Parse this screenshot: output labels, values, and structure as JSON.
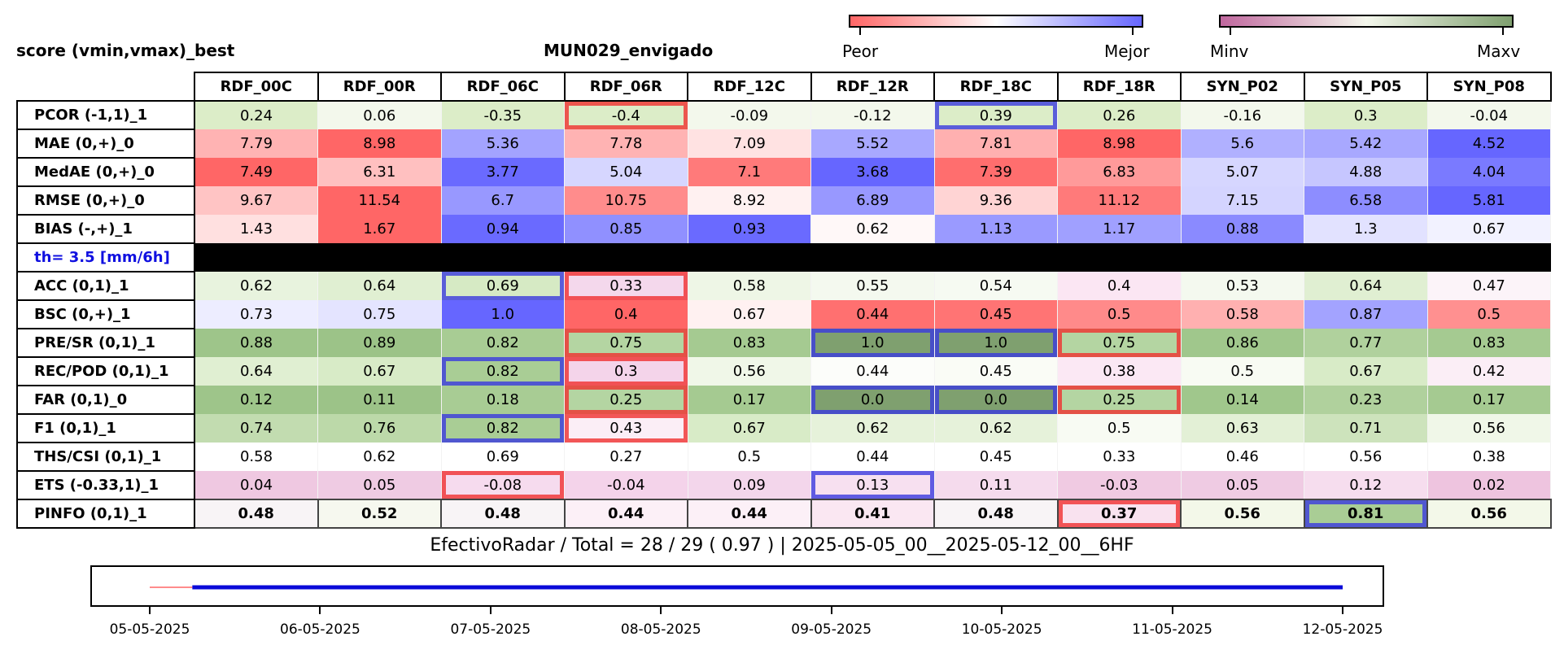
{
  "header": {
    "left_title": "score (vmin,vmax)_best",
    "center_title": "MUN029_envigado"
  },
  "colorbars": [
    {
      "left_label": "Peor",
      "right_label": "Mejor",
      "from": "#ff6666",
      "mid": "#ffffff",
      "to": "#6666ff"
    },
    {
      "left_label": "Minv",
      "right_label": "Maxv",
      "from": "#c0679e",
      "mid": "#f4f7ec",
      "to": "#7fa06f"
    }
  ],
  "chart_data": {
    "type": "table",
    "columns": [
      "RDF_00C",
      "RDF_00R",
      "RDF_06C",
      "RDF_06R",
      "RDF_12C",
      "RDF_12R",
      "RDF_18C",
      "RDF_18R",
      "SYN_P02",
      "SYN_P05",
      "SYN_P08"
    ],
    "rows": [
      {
        "label": "PCOR (-1,1)_1",
        "values": [
          "0.24",
          "0.06",
          "-0.35",
          "-0.4",
          "-0.09",
          "-0.12",
          "0.39",
          "0.26",
          "-0.16",
          "0.3",
          "-0.04"
        ],
        "colors": [
          "#dcedc8",
          "#f3f8ec",
          "#dcedc8",
          "#dcedc8",
          "#f3f8ec",
          "#f3f8ec",
          "#dcedc8",
          "#dcedc8",
          "#f3f8ec",
          "#dcedc8",
          "#f3f8ec"
        ],
        "outline": {
          "3": "worst",
          "6": "best"
        }
      },
      {
        "label": "MAE (0,+)_0",
        "values": [
          "7.79",
          "8.98",
          "5.36",
          "7.78",
          "7.09",
          "5.52",
          "7.81",
          "8.98",
          "5.6",
          "5.42",
          "4.52"
        ],
        "colors": [
          "#ffb3b3",
          "#ff6666",
          "#a3a3ff",
          "#ffb3b3",
          "#ffe2e2",
          "#a8a8ff",
          "#ffb0b0",
          "#ff6666",
          "#b0b0ff",
          "#a8a8ff",
          "#6666ff"
        ]
      },
      {
        "label": "MedAE (0,+)_0",
        "values": [
          "7.49",
          "6.31",
          "3.77",
          "5.04",
          "7.1",
          "3.68",
          "7.39",
          "6.83",
          "5.07",
          "4.88",
          "4.04"
        ],
        "colors": [
          "#ff6666",
          "#ffc0c0",
          "#6a6aff",
          "#d6d6ff",
          "#ff7a7a",
          "#6666ff",
          "#ff6e6e",
          "#ff9a9a",
          "#d6d6ff",
          "#c6c6ff",
          "#7a7aff"
        ]
      },
      {
        "label": "RMSE (0,+)_0",
        "values": [
          "9.67",
          "11.54",
          "6.7",
          "10.75",
          "8.92",
          "6.89",
          "9.36",
          "11.12",
          "7.15",
          "6.58",
          "5.81"
        ],
        "colors": [
          "#ffc4c4",
          "#ff6666",
          "#9898ff",
          "#ff8c8c",
          "#fff1f1",
          "#9898ff",
          "#ffd4d4",
          "#ff7a7a",
          "#d4d4ff",
          "#8d8dff",
          "#6666ff"
        ]
      },
      {
        "label": "BIAS (-,+)_1",
        "values": [
          "1.43",
          "1.67",
          "0.94",
          "0.85",
          "0.93",
          "0.62",
          "1.13",
          "1.17",
          "0.88",
          "1.3",
          "0.67"
        ],
        "colors": [
          "#ffe0e0",
          "#ff6666",
          "#6a6aff",
          "#9090ff",
          "#6a6aff",
          "#fff8f8",
          "#9a9aff",
          "#a0a0ff",
          "#8a8aff",
          "#e2e2ff",
          "#f2f2ff"
        ]
      },
      {
        "separator": true,
        "label": "th= 3.5 [mm/6h]"
      },
      {
        "label": "ACC (0,1)_1",
        "values": [
          "0.62",
          "0.64",
          "0.69",
          "0.33",
          "0.58",
          "0.55",
          "0.54",
          "0.4",
          "0.53",
          "0.64",
          "0.47"
        ],
        "colors": [
          "#e8f3de",
          "#e0efd2",
          "#d6eac4",
          "#f4d8ec",
          "#eef6e6",
          "#f4f9ef",
          "#f6faf2",
          "#fbe6f3",
          "#f4f9ef",
          "#e0efd2",
          "#fcf4f9"
        ],
        "outline": {
          "2": "best",
          "3": "worst"
        }
      },
      {
        "label": "BSC (0,+)_1",
        "values": [
          "0.73",
          "0.75",
          "1.0",
          "0.4",
          "0.67",
          "0.44",
          "0.45",
          "0.5",
          "0.58",
          "0.87",
          "0.5"
        ],
        "colors": [
          "#ededff",
          "#e4e4ff",
          "#6666ff",
          "#ff6666",
          "#fff1f1",
          "#ff7070",
          "#ff7474",
          "#ff8a8a",
          "#ffb0b0",
          "#a3a3ff",
          "#ff9090"
        ]
      },
      {
        "label": "PRE/SR (0,1)_1",
        "values": [
          "0.88",
          "0.89",
          "0.82",
          "0.75",
          "0.83",
          "1.0",
          "1.0",
          "0.75",
          "0.86",
          "0.77",
          "0.83"
        ],
        "colors": [
          "#9ec58a",
          "#9cc388",
          "#a8cc94",
          "#b4d5a2",
          "#a5ca91",
          "#7fa06f",
          "#7fa06f",
          "#b4d5a2",
          "#a0c78c",
          "#b0d19d",
          "#a5ca91"
        ],
        "outline": {
          "3": "worst",
          "5": "best",
          "6": "best",
          "7": "worst"
        }
      },
      {
        "label": "REC/POD (0,1)_1",
        "values": [
          "0.64",
          "0.67",
          "0.82",
          "0.3",
          "0.56",
          "0.44",
          "0.45",
          "0.38",
          "0.5",
          "0.67",
          "0.42"
        ],
        "colors": [
          "#e0efd2",
          "#d8ebc7",
          "#a9cd95",
          "#f4d4ea",
          "#f0f7e8",
          "#fcfdfa",
          "#fafcf6",
          "#fbe8f4",
          "#f8fbf3",
          "#d8ebc7",
          "#fbeef6"
        ],
        "outline": {
          "2": "best",
          "3": "worst"
        }
      },
      {
        "label": "FAR (0,1)_0",
        "values": [
          "0.12",
          "0.11",
          "0.18",
          "0.25",
          "0.17",
          "0.0",
          "0.0",
          "0.25",
          "0.14",
          "0.23",
          "0.17"
        ],
        "colors": [
          "#9ec58a",
          "#9cc388",
          "#a8cc94",
          "#b4d5a2",
          "#a5ca91",
          "#7fa06f",
          "#7fa06f",
          "#b4d5a2",
          "#a0c78c",
          "#b0d19d",
          "#a5ca91"
        ],
        "outline": {
          "3": "worst",
          "5": "best",
          "6": "best",
          "7": "worst"
        }
      },
      {
        "label": "F1 (0,1)_1",
        "values": [
          "0.74",
          "0.76",
          "0.82",
          "0.43",
          "0.67",
          "0.62",
          "0.62",
          "0.5",
          "0.63",
          "0.71",
          "0.56"
        ],
        "colors": [
          "#c2dcb0",
          "#bcd9a9",
          "#a9cd95",
          "#fbeef6",
          "#d8ebc7",
          "#e6f2da",
          "#e6f2da",
          "#f8fbf3",
          "#e3f0d6",
          "#cde3bc",
          "#f0f7e8"
        ],
        "outline": {
          "2": "best",
          "3": "worst"
        }
      },
      {
        "label": "THS/CSI (0,1)_1",
        "values": [
          "0.58",
          "0.62",
          "0.69",
          "0.27",
          "0.5",
          "0.44",
          "0.45",
          "0.33",
          "0.46",
          "0.56",
          "0.38"
        ],
        "colors": [
          "#ffffff",
          "#ffffff",
          "#ffffff",
          "#ffffff",
          "#ffffff",
          "#ffffff",
          "#ffffff",
          "#ffffff",
          "#ffffff",
          "#ffffff",
          "#ffffff"
        ]
      },
      {
        "label": "ETS (-0.33,1)_1",
        "values": [
          "0.04",
          "0.05",
          "-0.08",
          "-0.04",
          "0.09",
          "0.13",
          "0.11",
          "-0.03",
          "0.05",
          "0.12",
          "0.02"
        ],
        "colors": [
          "#efc8e1",
          "#efcbe3",
          "#f6dbee",
          "#f4d3ea",
          "#f3d6eb",
          "#f7e0f0",
          "#f5dbed",
          "#f0cae2",
          "#efcbe3",
          "#f6ddee",
          "#eec4df"
        ],
        "outline": {
          "2": "worst",
          "5": "best"
        }
      },
      {
        "label": "PINFO (0,1)_1",
        "bold": true,
        "values": [
          "0.48",
          "0.52",
          "0.48",
          "0.44",
          "0.44",
          "0.41",
          "0.48",
          "0.37",
          "0.56",
          "0.81",
          "0.56"
        ],
        "colors": [
          "#f8f4f6",
          "#f6f8ef",
          "#f8f4f6",
          "#fcf0f7",
          "#fcf0f7",
          "#fae7f2",
          "#f8f4f6",
          "#f9e2ef",
          "#f3f8e9",
          "#a9cd95",
          "#f3f8e9"
        ],
        "outline": {
          "7": "worst",
          "9": "best"
        }
      }
    ],
    "summary": "EfectivoRadar / Total  =  28 / 29 ( 0.97 ) | 2025-05-05_00__2025-05-12_00__6HF",
    "timeline": {
      "type": "line",
      "ticks": [
        "05-05-2025",
        "06-05-2025",
        "07-05-2025",
        "08-05-2025",
        "09-05-2025",
        "10-05-2025",
        "11-05-2025",
        "12-05-2025"
      ],
      "x_range": [
        "05-05-2025",
        "12-05-2025"
      ],
      "missing_segment": {
        "from": "2025-05-05 00:00",
        "to": "2025-05-05 06:00",
        "color": "#ff6666"
      },
      "available_segment": {
        "from": "2025-05-05 06:00",
        "to": "2025-05-12 00:00",
        "color": "#0a0ad8"
      }
    }
  },
  "outline_colors": {
    "best": "#3a3adf",
    "worst": "#f03030"
  }
}
